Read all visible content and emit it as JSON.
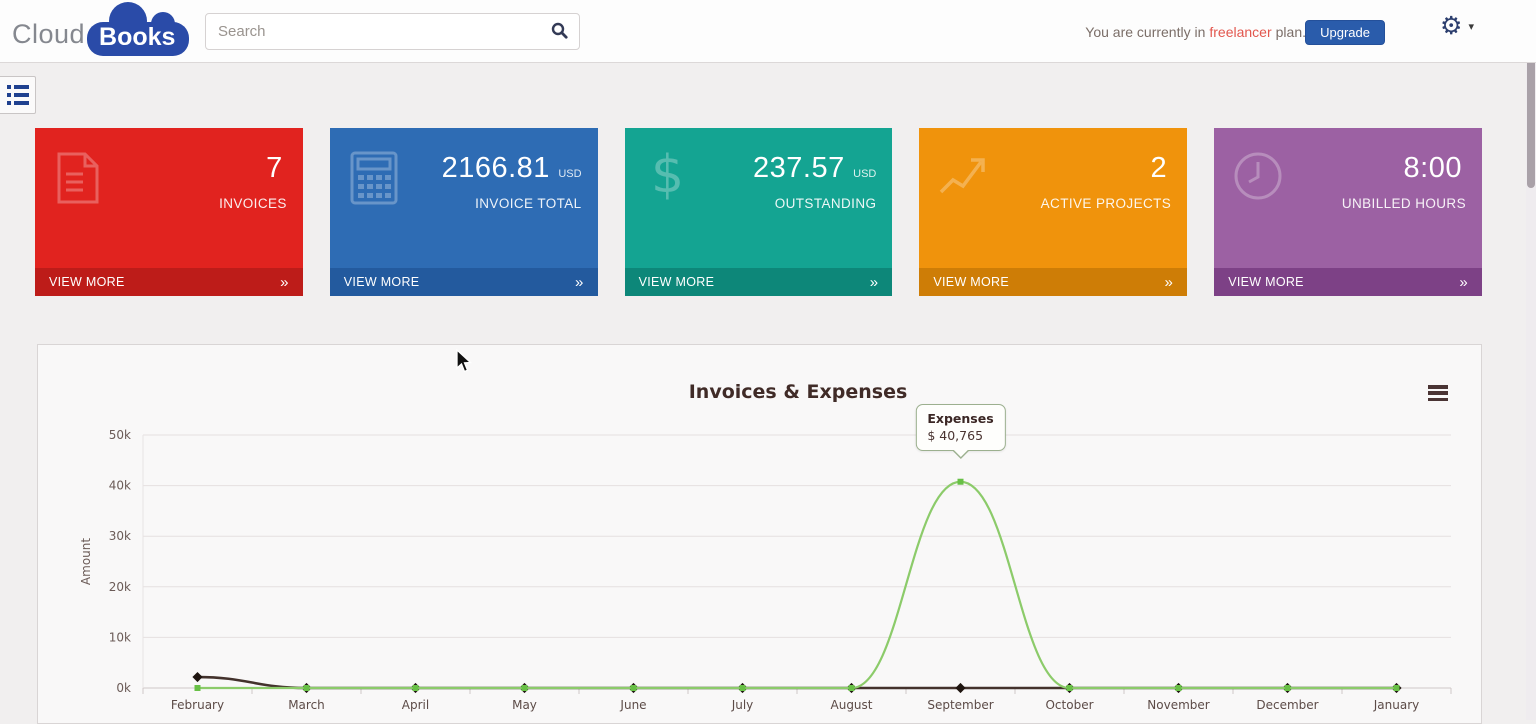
{
  "header": {
    "logo_cloud": "Cloud",
    "logo_books": "Books",
    "search_placeholder": "Search",
    "plan_prefix": "You are currently in",
    "plan_name": "freelancer",
    "plan_suffix": "plan.",
    "upgrade_label": "Upgrade"
  },
  "icons": {
    "gear": "⚙",
    "caret_down": "▾"
  },
  "colors": {
    "accent_blue": "#2a5cab",
    "logo_blue": "#2a4ba8",
    "plan_highlight": "#e2574e",
    "page_bg": "#f1efef"
  },
  "cards": [
    {
      "value": "7",
      "unit": "",
      "label": "INVOICES",
      "view_more": "VIEW MORE",
      "arrow": "»",
      "bg": "#e1231f",
      "footer_bg": "#bd1c19",
      "icon": "invoice-icon"
    },
    {
      "value": "2166.81",
      "unit": "USD",
      "label": "INVOICE TOTAL",
      "view_more": "VIEW MORE",
      "arrow": "»",
      "bg": "#2e6cb4",
      "footer_bg": "#235a9e",
      "icon": "calculator-icon"
    },
    {
      "value": "237.57",
      "unit": "USD",
      "label": "OUTSTANDING",
      "view_more": "VIEW MORE",
      "arrow": "»",
      "bg": "#14a492",
      "footer_bg": "#0d8779",
      "icon": "dollar-icon"
    },
    {
      "value": "2",
      "unit": "",
      "label": "ACTIVE PROJECTS",
      "view_more": "VIEW MORE",
      "arrow": "»",
      "bg": "#f0930c",
      "footer_bg": "#ce7d06",
      "icon": "trend-icon"
    },
    {
      "value": "8:00",
      "unit": "",
      "label": "UNBILLED HOURS",
      "view_more": "VIEW MORE",
      "arrow": "»",
      "bg": "#9c61a3",
      "footer_bg": "#7d4186",
      "icon": "clock-icon"
    }
  ],
  "chart_data": {
    "type": "line",
    "title": "Invoices & Expenses",
    "xlabel": "",
    "ylabel": "Amount",
    "categories": [
      "February",
      "March",
      "April",
      "May",
      "June",
      "July",
      "August",
      "September",
      "October",
      "November",
      "December",
      "January"
    ],
    "series": [
      {
        "name": "Invoices",
        "color": "#43322c",
        "marker_color": "#1f1510",
        "marker": "diamond",
        "values": [
          2166.81,
          0,
          0,
          0,
          0,
          0,
          0,
          0,
          0,
          0,
          0,
          0
        ]
      },
      {
        "name": "Expenses",
        "color": "#8ccb6a",
        "marker_color": "#68c046",
        "marker": "square",
        "values": [
          0,
          0,
          0,
          0,
          0,
          0,
          0,
          40765,
          0,
          0,
          0,
          0
        ]
      }
    ],
    "ylim": [
      0,
      50000
    ],
    "yticks": [
      "0k",
      "10k",
      "20k",
      "30k",
      "40k",
      "50k"
    ],
    "grid": true,
    "legend": "none",
    "tooltip": {
      "series": "Expenses",
      "value": "$ 40,765",
      "month": "September",
      "point_index": 7
    }
  }
}
